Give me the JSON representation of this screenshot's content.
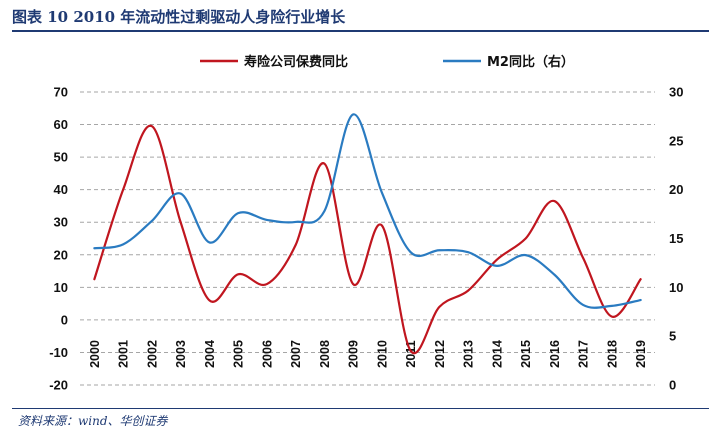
{
  "figure": {
    "title": "图表 10   2010 年流动性过剩驱动人身险行业增长",
    "source": "资料来源：wind、华创证券"
  },
  "colors": {
    "series_premium": "#c0161f",
    "series_m2": "#2a7bc1",
    "accent": "#1f3a73"
  },
  "chart_data": {
    "type": "line",
    "categories": [
      "2000",
      "2001",
      "2002",
      "2003",
      "2004",
      "2005",
      "2006",
      "2007",
      "2008",
      "2009",
      "2010",
      "2011",
      "2012",
      "2013",
      "2014",
      "2015",
      "2016",
      "2017",
      "2018",
      "2019"
    ],
    "series": [
      {
        "name": "寿险公司保费同比",
        "axis": "left",
        "values": [
          12.5,
          40,
          59.5,
          30,
          6,
          14,
          11,
          23,
          48,
          11,
          29,
          -9.5,
          4,
          9,
          18.5,
          25,
          36.5,
          19,
          1,
          12.5
        ]
      },
      {
        "name": "M2同比（右）",
        "axis": "right",
        "values": [
          14,
          14.4,
          16.8,
          19.6,
          14.6,
          17.6,
          16.9,
          16.7,
          17.8,
          27.7,
          19.7,
          13.6,
          13.8,
          13.6,
          12.2,
          13.3,
          11.3,
          8.2,
          8.1,
          8.7
        ]
      }
    ],
    "y_left": {
      "ylim": [
        -20,
        70
      ],
      "ticks": [
        -20,
        -10,
        0,
        10,
        20,
        30,
        40,
        50,
        60,
        70
      ]
    },
    "y_right": {
      "ylim": [
        0,
        30
      ],
      "ticks": [
        0,
        5,
        10,
        15,
        20,
        25,
        30
      ]
    },
    "grid": "horizontal-dashed",
    "legend": "top"
  }
}
